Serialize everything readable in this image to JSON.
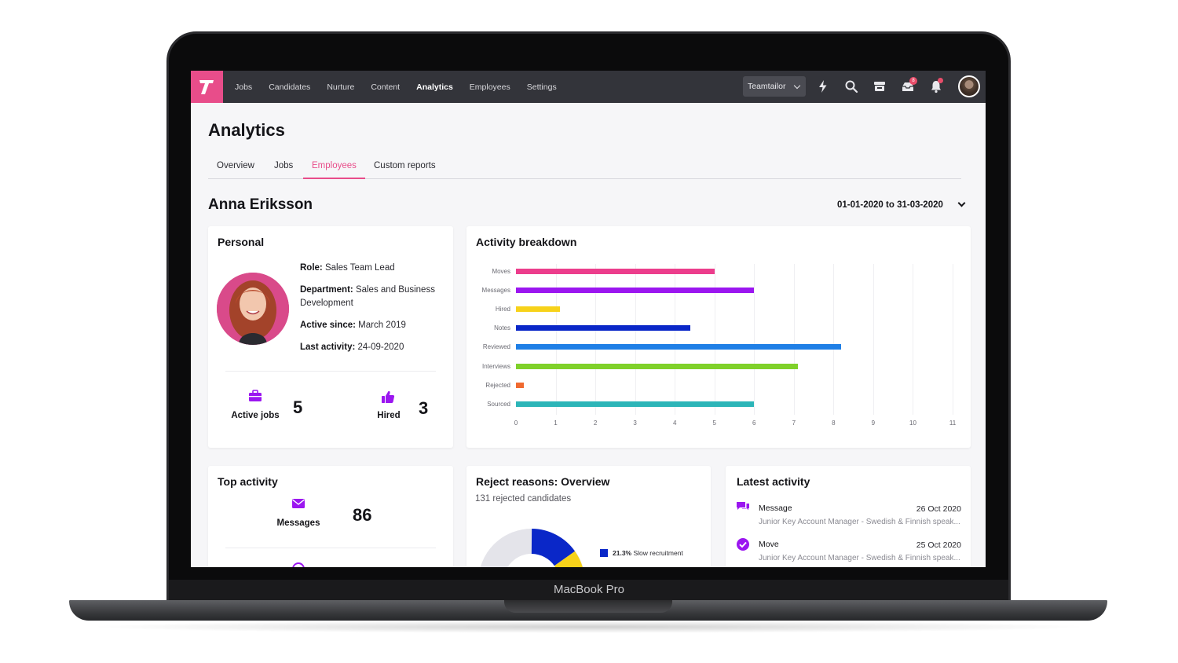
{
  "device_label": "MacBook Pro",
  "nav": {
    "items": [
      "Jobs",
      "Candidates",
      "Nurture",
      "Content",
      "Analytics",
      "Employees",
      "Settings"
    ],
    "active": "Analytics",
    "org_select": "Teamtailor",
    "messages_badge": "8"
  },
  "page": {
    "title": "Analytics",
    "tabs": [
      "Overview",
      "Jobs",
      "Employees",
      "Custom reports"
    ],
    "active_tab": "Employees",
    "person_name": "Anna Eriksson",
    "date_range": "01-01-2020 to 31-03-2020"
  },
  "personal": {
    "title": "Personal",
    "role_label": "Role:",
    "role": "Sales Team Lead",
    "department_label": "Department:",
    "department": "Sales and Business Development",
    "active_since_label": "Active since:",
    "active_since": "March 2019",
    "last_activity_label": "Last activity:",
    "last_activity": "24-09-2020",
    "active_jobs_label": "Active jobs",
    "active_jobs": "5",
    "hired_label": "Hired",
    "hired": "3"
  },
  "activity_breakdown": {
    "title": "Activity breakdown"
  },
  "chart_data": {
    "type": "bar",
    "orientation": "horizontal",
    "title": "Activity breakdown",
    "categories": [
      "Moves",
      "Messages",
      "Hired",
      "Notes",
      "Reviewed",
      "Interviews",
      "Rejected",
      "Sourced"
    ],
    "values": [
      5,
      6,
      1.1,
      4.4,
      8.2,
      7.1,
      0.2,
      6
    ],
    "colors": [
      "#ec3d8c",
      "#9b16f0",
      "#f7d21a",
      "#0a27c8",
      "#1f7fe6",
      "#7fd12a",
      "#f06a30",
      "#2cb5b8"
    ],
    "x_ticks": [
      "0",
      "1",
      "2",
      "3",
      "4",
      "5",
      "6",
      "7",
      "8",
      "9",
      "10",
      "11"
    ],
    "xlim": [
      0,
      11
    ],
    "grid": true
  },
  "top_activity": {
    "title": "Top activity",
    "messages_label": "Messages",
    "messages": "86"
  },
  "reject_reasons": {
    "title": "Reject reasons: Overview",
    "subtitle": "131 rejected candidates",
    "legend_pct": "21.3%",
    "legend_label": "Slow recruitment",
    "legend_color": "#0a27c8"
  },
  "latest_activity": {
    "title": "Latest activity",
    "items": [
      {
        "type": "Message",
        "date": "26 Oct 2020",
        "detail": "Junior Key Account Manager - Swedish & Finnish speak..."
      },
      {
        "type": "Move",
        "date": "25 Oct 2020",
        "detail": "Junior Key Account Manager - Swedish & Finnish speak..."
      }
    ]
  },
  "accent_color": "#e84d8a",
  "icon_color": "#9b16f0"
}
